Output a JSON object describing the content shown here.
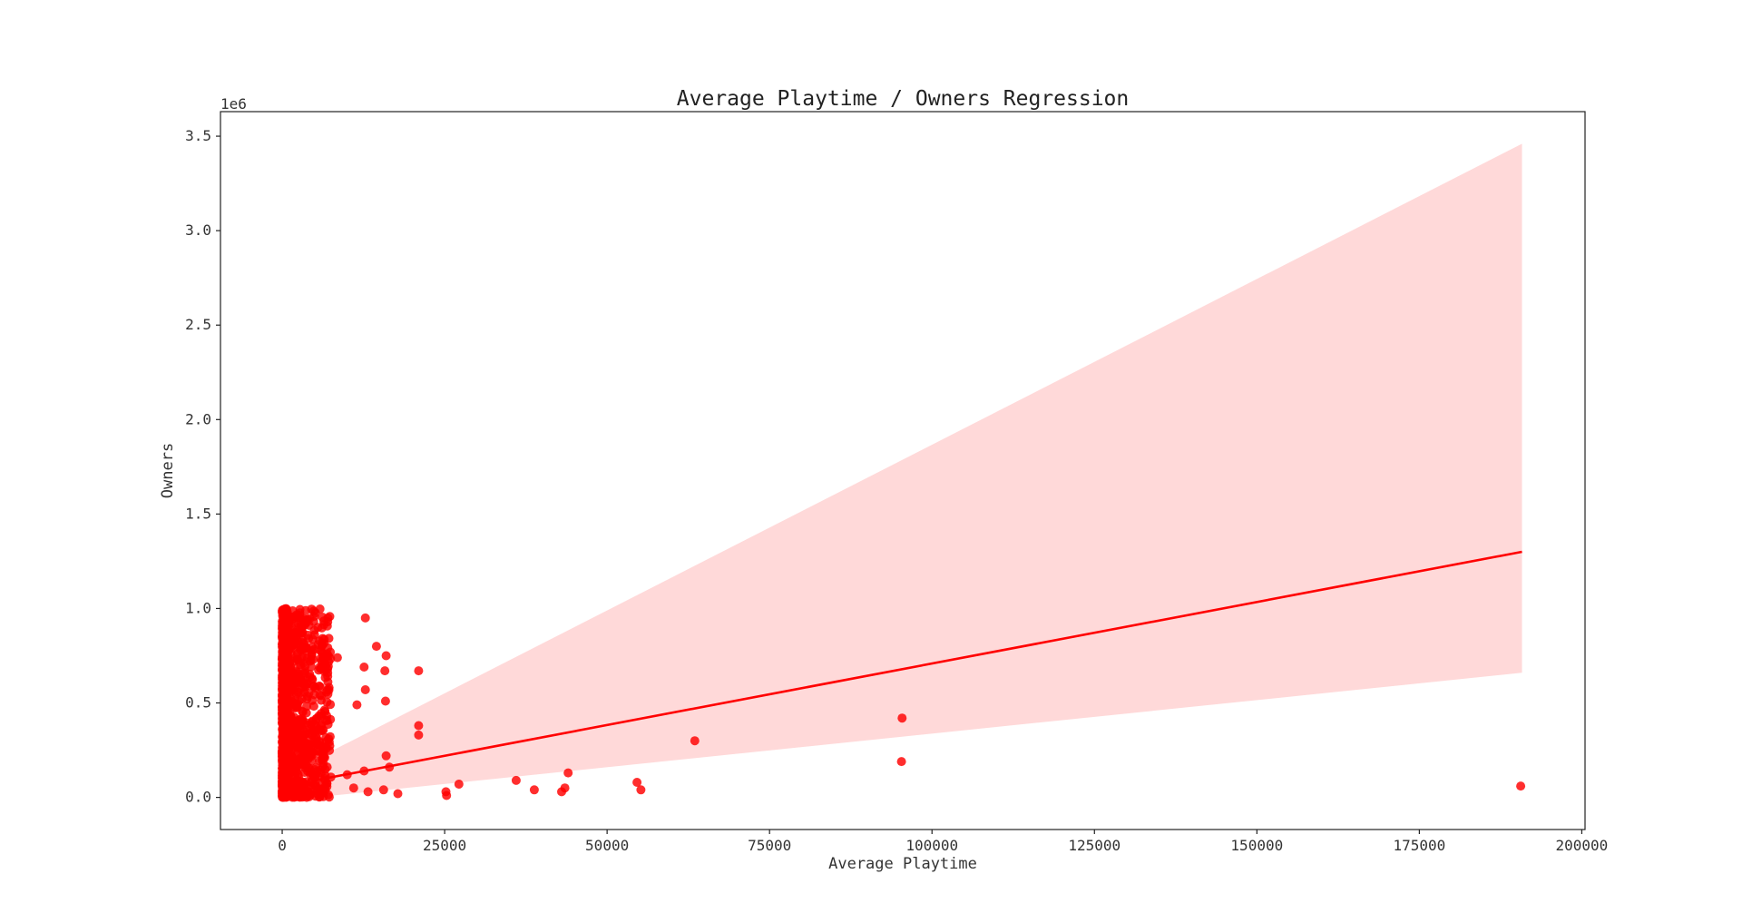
{
  "chart_data": {
    "type": "scatter",
    "title": "Average Playtime / Owners Regression",
    "xlabel": "Average Playtime",
    "ylabel": "Owners",
    "y_offset_label": "1e6",
    "xlim": [
      -9500,
      200500
    ],
    "ylim": [
      -0.17,
      3.63
    ],
    "y_unit_multiplier": 1000000,
    "xticks": [
      0,
      25000,
      50000,
      75000,
      100000,
      125000,
      150000,
      175000,
      200000
    ],
    "xtick_labels": [
      "0",
      "25000",
      "50000",
      "75000",
      "100000",
      "125000",
      "150000",
      "175000",
      "200000"
    ],
    "yticks": [
      0.0,
      0.5,
      1.0,
      1.5,
      2.0,
      2.5,
      3.0,
      3.5
    ],
    "ytick_labels": [
      "0.0",
      "0.5",
      "1.0",
      "1.5",
      "2.0",
      "2.5",
      "3.0",
      "3.5"
    ],
    "grid": false,
    "color": "#ff0000",
    "ci_color": "#ffd9d9",
    "regression": {
      "x": [
        5000,
        190800
      ],
      "y": [
        0.09,
        1.3
      ],
      "ci_upper": [
        0.2,
        3.46
      ],
      "ci_lower": [
        0.0,
        0.66
      ]
    },
    "outliers": {
      "x": [
        12800,
        14500,
        16000,
        21000,
        8500,
        15800,
        12600,
        21000,
        21000,
        12800,
        11500,
        15900,
        16000,
        16500,
        10000,
        11000,
        12600,
        13200,
        15600,
        17800,
        25200,
        25300,
        27200,
        36000,
        38800,
        43000,
        43500,
        44000,
        54600,
        55200,
        63500,
        95400,
        95300,
        190600
      ],
      "y": [
        0.95,
        0.8,
        0.75,
        0.67,
        0.74,
        0.67,
        0.69,
        0.38,
        0.33,
        0.57,
        0.49,
        0.51,
        0.22,
        0.16,
        0.12,
        0.05,
        0.14,
        0.03,
        0.04,
        0.02,
        0.03,
        0.01,
        0.07,
        0.09,
        0.04,
        0.03,
        0.05,
        0.13,
        0.08,
        0.04,
        0.3,
        0.42,
        0.19,
        0.06
      ]
    },
    "dense_cluster": {
      "x_range": [
        0,
        7500
      ],
      "y_range": [
        0.0,
        1.0
      ],
      "approx_count": 900
    }
  }
}
